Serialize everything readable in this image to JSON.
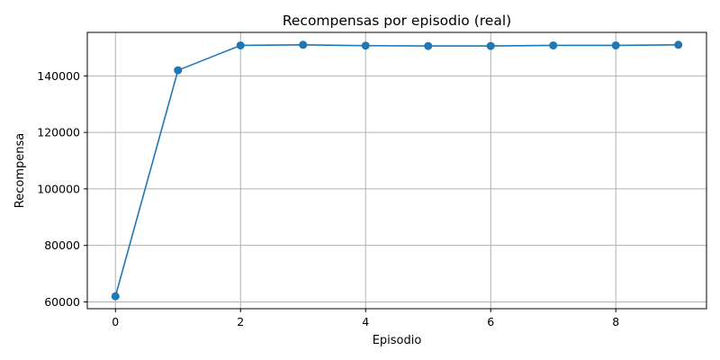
{
  "chart_data": {
    "type": "line",
    "title": "Recompensas por episodio (real)",
    "xlabel": "Episodio",
    "ylabel": "Recompensa",
    "x": [
      0,
      1,
      2,
      3,
      4,
      5,
      6,
      7,
      8,
      9
    ],
    "series": [
      {
        "values": [
          62000,
          142000,
          150800,
          151000,
          150700,
          150600,
          150600,
          150800,
          150800,
          151000
        ],
        "color": "#1f77b4",
        "marker": "circle"
      }
    ],
    "xlim": [
      -0.45,
      9.45
    ],
    "ylim": [
      57600,
      155400
    ],
    "xticks": [
      0,
      2,
      4,
      6,
      8
    ],
    "yticks": [
      60000,
      80000,
      100000,
      120000,
      140000
    ],
    "grid": true,
    "grid_color": "#b0b0b0",
    "legend": false
  }
}
